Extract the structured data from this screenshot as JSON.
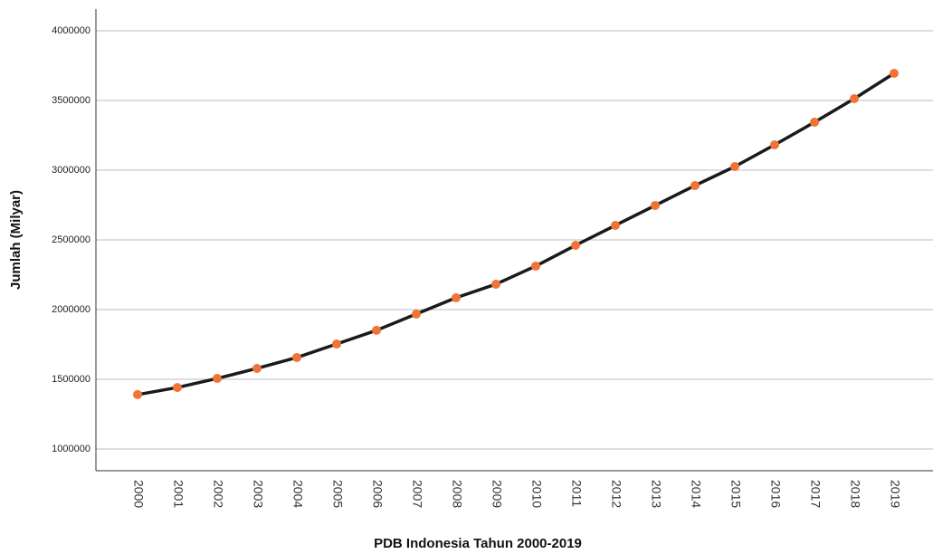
{
  "chart_data": {
    "type": "line",
    "x_label": "PDB Indonesia Tahun 2000-2019",
    "y_label": "Jumlah (Milyar)",
    "categories": [
      "2000",
      "2001",
      "2002",
      "2003",
      "2004",
      "2005",
      "2006",
      "2007",
      "2008",
      "2009",
      "2010",
      "2011",
      "2012",
      "2013",
      "2014",
      "2015",
      "2016",
      "2017",
      "2018",
      "2019"
    ],
    "values": [
      1390000,
      1441000,
      1506000,
      1578000,
      1656000,
      1753000,
      1851000,
      1968000,
      2085000,
      2182000,
      2312000,
      2461000,
      2604000,
      2747000,
      2890000,
      3026000,
      3182000,
      3344000,
      3513000,
      3695000
    ],
    "color": "#1a1a1a",
    "marker_color": "#f07438",
    "ylim": [
      844000,
      4156000
    ],
    "yticks": [
      1000000,
      1500000,
      2000000,
      2500000,
      3000000,
      3500000,
      4000000
    ],
    "grid": true
  }
}
